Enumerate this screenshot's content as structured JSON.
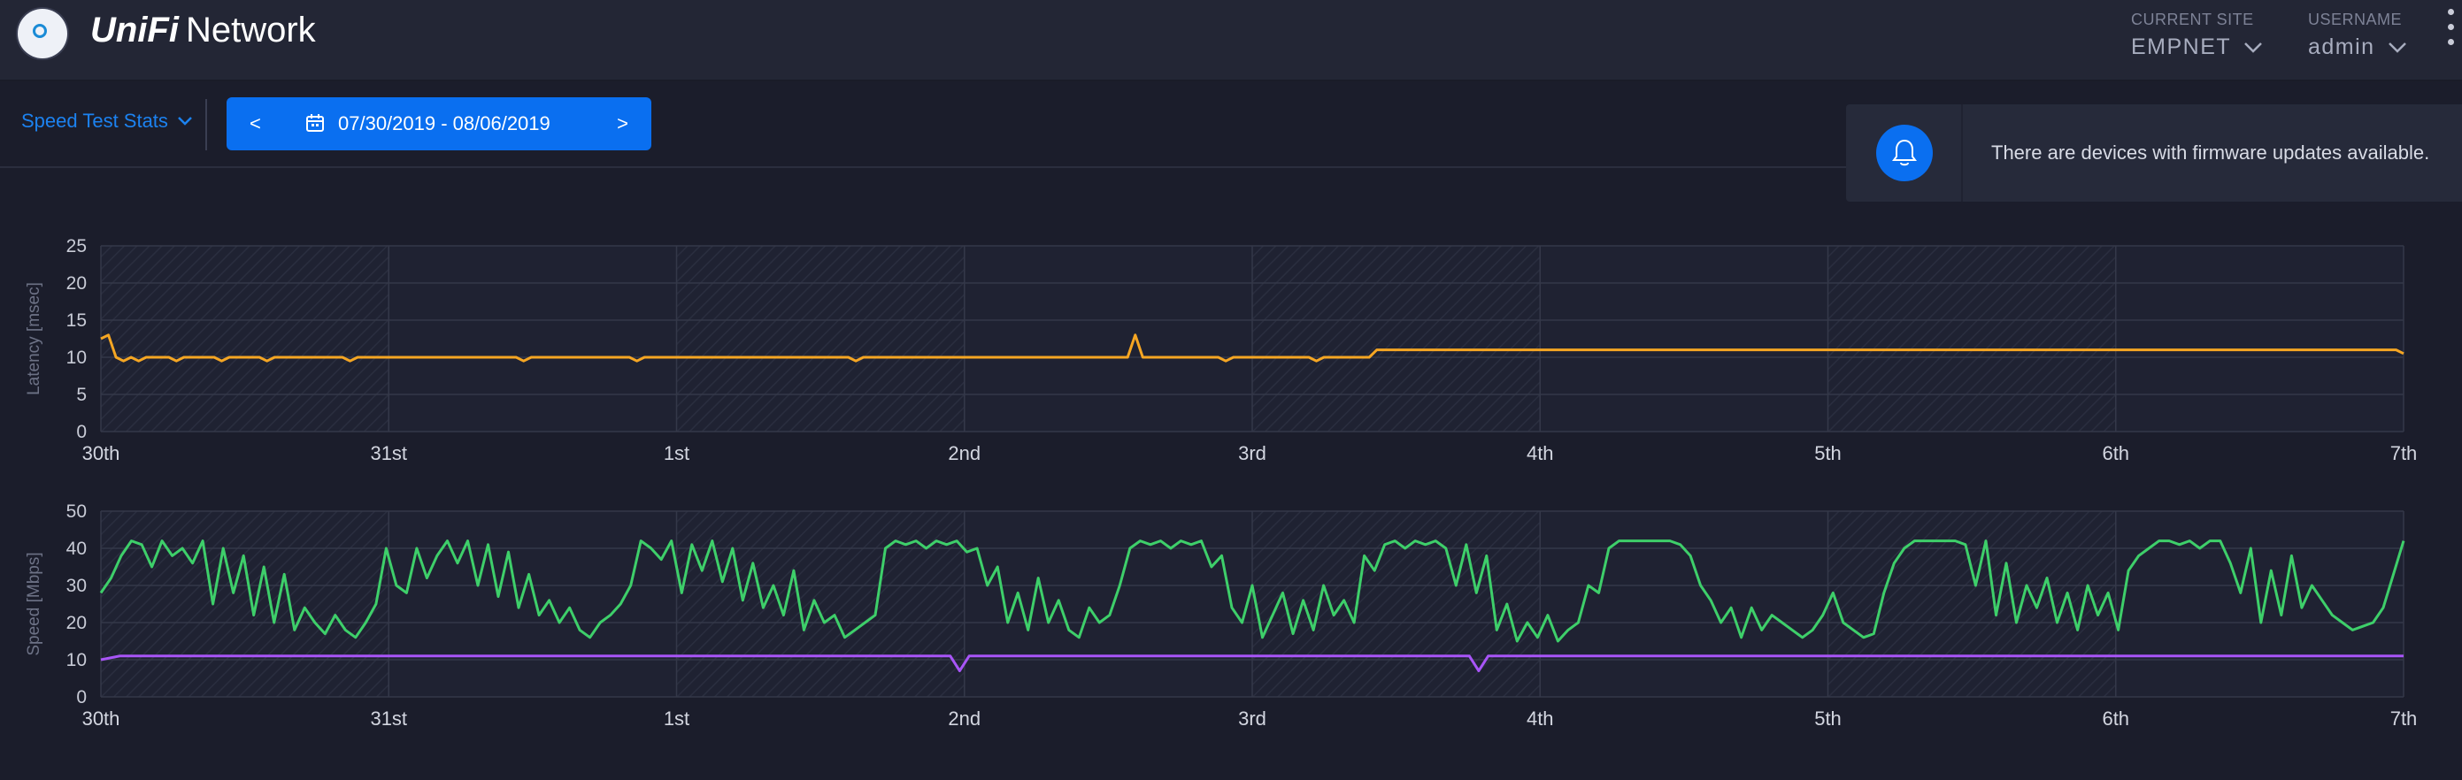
{
  "app": {
    "logo_icon": "unifi-logo-icon",
    "brand_primary": "UniFi",
    "brand_secondary": "Network"
  },
  "header": {
    "current_site_label": "CURRENT SITE",
    "current_site_value": "EMPNET",
    "username_label": "USERNAME",
    "username_value": "admin"
  },
  "toolbar": {
    "stats_selector": "Speed Test Stats",
    "prev_label": "<",
    "next_label": ">",
    "date_range": "07/30/2019 - 08/06/2019",
    "accent": "#0a6ff0"
  },
  "notification": {
    "icon": "bell-icon",
    "message": "There are devices with firmware updates available."
  },
  "chart_data": [
    {
      "type": "line",
      "ylabel": "Latency [msec]",
      "ylim": [
        0,
        25
      ],
      "yticks": [
        0,
        5,
        10,
        15,
        20,
        25
      ],
      "x_ticks": [
        "30th",
        "31st",
        "1st",
        "2nd",
        "3rd",
        "4th",
        "5th",
        "6th",
        "7th"
      ],
      "series": [
        {
          "color": "#f5a623",
          "values": [
            12.5,
            13,
            10,
            9.5,
            10,
            9.5,
            10,
            10,
            10,
            10,
            9.5,
            10,
            10,
            10,
            10,
            10,
            9.5,
            10,
            10,
            10,
            10,
            10,
            9.5,
            10,
            10,
            10,
            10,
            10,
            10,
            10,
            10,
            10,
            10,
            9.5,
            10,
            10,
            10,
            10,
            10,
            10,
            10,
            10,
            10,
            10,
            10,
            10,
            10,
            10,
            10,
            10,
            10,
            10,
            10,
            10,
            10,
            10,
            9.5,
            10,
            10,
            10,
            10,
            10,
            10,
            10,
            10,
            10,
            10,
            10,
            10,
            10,
            10,
            9.5,
            10,
            10,
            10,
            10,
            10,
            10,
            10,
            10,
            10,
            10,
            10,
            10,
            10,
            10,
            10,
            10,
            10,
            10,
            10,
            10,
            10,
            10,
            10,
            10,
            10,
            10,
            10,
            10,
            9.5,
            10,
            10,
            10,
            10,
            10,
            10,
            10,
            10,
            10,
            10,
            10,
            10,
            10,
            10,
            10,
            10,
            10,
            10,
            10,
            10,
            10,
            10,
            10,
            10,
            10,
            10,
            10,
            10,
            10,
            10,
            10,
            10,
            10,
            10,
            10,
            10,
            13,
            10,
            10,
            10,
            10,
            10,
            10,
            10,
            10,
            10,
            10,
            10,
            9.5,
            10,
            10,
            10,
            10,
            10,
            10,
            10,
            10,
            10,
            10,
            10,
            9.5,
            10,
            10,
            10,
            10,
            10,
            10,
            10,
            11,
            11,
            11,
            11,
            11,
            11,
            11,
            11,
            11,
            11,
            11,
            11,
            11,
            11,
            11,
            11,
            11,
            11,
            11,
            11,
            11,
            11,
            11,
            11,
            11,
            11,
            11,
            11,
            11,
            11,
            11,
            11,
            11,
            11,
            11,
            11,
            11,
            11,
            11,
            11,
            11,
            11,
            11,
            11,
            11,
            11,
            11,
            11,
            11,
            11,
            11,
            11,
            11,
            11,
            11,
            11,
            11,
            11,
            11,
            11,
            11,
            11,
            11,
            11,
            11,
            11,
            11,
            11,
            11,
            11,
            11,
            11,
            11,
            11,
            11,
            11,
            11,
            11,
            11,
            11,
            11,
            11,
            11,
            11,
            11,
            11,
            11,
            11,
            11,
            11,
            11,
            11,
            11,
            11,
            11,
            11,
            11,
            11,
            11,
            11,
            11,
            11,
            11,
            11,
            11,
            11,
            11,
            11,
            11,
            11,
            11,
            11,
            11,
            11,
            11,
            11,
            11,
            11,
            11,
            11,
            11,
            11,
            11,
            11,
            11,
            11,
            11,
            11,
            11,
            11,
            11,
            11,
            11,
            11,
            11,
            11,
            10.5
          ]
        }
      ]
    },
    {
      "type": "line",
      "ylabel": "Speed [Mbps]",
      "ylim": [
        0,
        50
      ],
      "yticks": [
        0,
        10,
        20,
        30,
        40,
        50
      ],
      "x_ticks": [
        "30th",
        "31st",
        "1st",
        "2nd",
        "3rd",
        "4th",
        "5th",
        "6th",
        "7th"
      ],
      "series": [
        {
          "color": "#3ecf6a",
          "values": [
            28,
            32,
            38,
            42,
            41,
            35,
            42,
            38,
            40,
            36,
            42,
            25,
            40,
            28,
            38,
            22,
            35,
            20,
            33,
            18,
            24,
            20,
            17,
            22,
            18,
            16,
            20,
            25,
            40,
            30,
            28,
            40,
            32,
            38,
            42,
            36,
            42,
            30,
            41,
            27,
            39,
            24,
            33,
            22,
            26,
            20,
            24,
            18,
            16,
            20,
            22,
            25,
            30,
            42,
            40,
            37,
            42,
            28,
            41,
            34,
            42,
            31,
            40,
            26,
            36,
            24,
            30,
            22,
            34,
            18,
            26,
            20,
            22,
            16,
            18,
            20,
            22,
            40,
            42,
            41,
            42,
            40,
            42,
            41,
            42,
            39,
            40,
            30,
            35,
            20,
            28,
            18,
            32,
            20,
            26,
            18,
            16,
            24,
            20,
            22,
            30,
            40,
            42,
            41,
            42,
            40,
            42,
            41,
            42,
            35,
            38,
            24,
            20,
            30,
            16,
            22,
            28,
            17,
            26,
            18,
            30,
            22,
            26,
            20,
            38,
            34,
            41,
            42,
            40,
            42,
            41,
            42,
            40,
            30,
            41,
            28,
            38,
            18,
            25,
            15,
            20,
            16,
            22,
            15,
            18,
            20,
            30,
            28,
            40,
            42,
            42,
            42,
            42,
            42,
            42,
            41,
            38,
            30,
            26,
            20,
            24,
            16,
            24,
            18,
            22,
            20,
            18,
            16,
            18,
            22,
            28,
            20,
            18,
            16,
            17,
            28,
            36,
            40,
            42,
            42,
            42,
            42,
            42,
            41,
            30,
            42,
            22,
            36,
            20,
            30,
            24,
            32,
            20,
            28,
            18,
            30,
            22,
            28,
            18,
            34,
            38,
            40,
            42,
            42,
            41,
            42,
            40,
            42,
            42,
            36,
            28,
            40,
            20,
            34,
            22,
            38,
            24,
            30,
            26,
            22,
            20,
            18,
            19,
            20,
            24,
            33,
            42
          ]
        },
        {
          "color": "#a855f7",
          "values": [
            10,
            10.5,
            11,
            11,
            11,
            11,
            11,
            11,
            11,
            11,
            11,
            11,
            11,
            11,
            11,
            11,
            11,
            11,
            11,
            11,
            11,
            11,
            11,
            11,
            11,
            11,
            11,
            11,
            11,
            11,
            11,
            11,
            11,
            11,
            11,
            11,
            11,
            11,
            11,
            11,
            11,
            11,
            11,
            11,
            11,
            11,
            11,
            11,
            11,
            11,
            11,
            11,
            11,
            11,
            11,
            11,
            11,
            11,
            11,
            11,
            11,
            11,
            11,
            11,
            11,
            11,
            11,
            11,
            11,
            11,
            11,
            11,
            11,
            11,
            11,
            11,
            11,
            11,
            11,
            11,
            11,
            11,
            11,
            11,
            11,
            11,
            11,
            11,
            11,
            11,
            11,
            7,
            11,
            11,
            11,
            11,
            11,
            11,
            11,
            11,
            11,
            11,
            11,
            11,
            11,
            11,
            11,
            11,
            11,
            11,
            11,
            11,
            11,
            11,
            11,
            11,
            11,
            11,
            11,
            11,
            11,
            11,
            11,
            11,
            11,
            11,
            11,
            11,
            11,
            11,
            11,
            11,
            11,
            11,
            11,
            11,
            11,
            11,
            11,
            11,
            11,
            11,
            11,
            11,
            11,
            11,
            7,
            11,
            11,
            11,
            11,
            11,
            11,
            11,
            11,
            11,
            11,
            11,
            11,
            11,
            11,
            11,
            11,
            11,
            11,
            11,
            11,
            11,
            11,
            11,
            11,
            11,
            11,
            11,
            11,
            11,
            11,
            11,
            11,
            11,
            11,
            11,
            11,
            11,
            11,
            11,
            11,
            11,
            11,
            11,
            11,
            11,
            11,
            11,
            11,
            11,
            11,
            11,
            11,
            11,
            11,
            11,
            11,
            11,
            11,
            11,
            11,
            11,
            11,
            11,
            11,
            11,
            11,
            11,
            11,
            11,
            11,
            11,
            11,
            11,
            11,
            11,
            11,
            11,
            11,
            11,
            11,
            11,
            11,
            11,
            11,
            11,
            11,
            11,
            11,
            11,
            11,
            11,
            11,
            11,
            11,
            11,
            11,
            11,
            11
          ]
        }
      ]
    }
  ]
}
